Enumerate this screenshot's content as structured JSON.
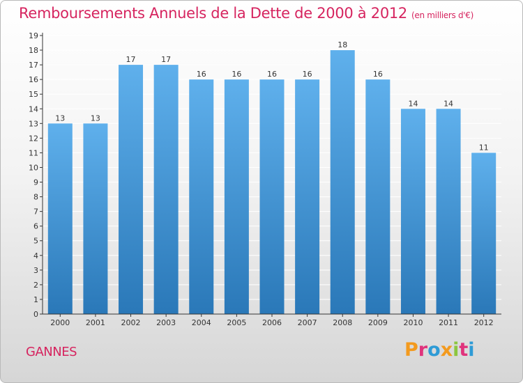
{
  "header": {
    "title": "Remboursements Annuels de la Dette de 2000 à 2012",
    "unit": "(en milliers d'€)"
  },
  "footer": {
    "place": "GANNES",
    "brand": "Proxiti",
    "brand_colors": [
      "#f39a1e",
      "#e0337c",
      "#2e9bd6",
      "#f39a1e",
      "#8cc63f",
      "#e0337c",
      "#2e9bd6"
    ]
  },
  "colors": {
    "title": "#d6245f",
    "bar_top": "#5fb0ec",
    "bar_bottom": "#2a78b8",
    "grid": "#ffffff",
    "axis": "#333333"
  },
  "chart_data": {
    "type": "bar",
    "categories": [
      "2000",
      "2001",
      "2002",
      "2003",
      "2004",
      "2005",
      "2006",
      "2007",
      "2008",
      "2009",
      "2010",
      "2011",
      "2012"
    ],
    "values": [
      13,
      13,
      17,
      17,
      16,
      16,
      16,
      16,
      18,
      16,
      14,
      14,
      11
    ],
    "y_ticks": [
      0,
      1,
      2,
      3,
      4,
      5,
      6,
      7,
      8,
      9,
      10,
      11,
      12,
      13,
      14,
      15,
      16,
      17,
      18,
      19
    ],
    "ylim": [
      0,
      19
    ],
    "grid": true,
    "data_labels": true
  }
}
